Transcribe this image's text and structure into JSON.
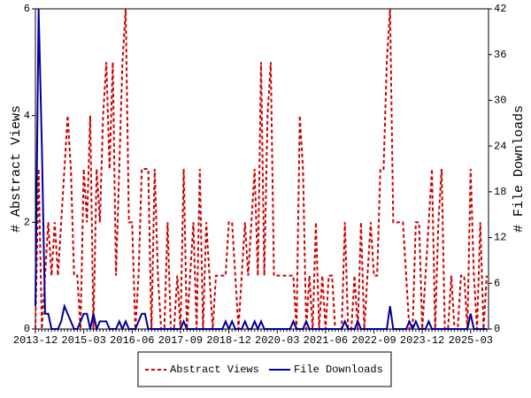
{
  "chart_data": {
    "type": "line",
    "y_label": "# Abstract Views",
    "y2_label": "# File Downloads",
    "categories": [
      "2013-12",
      null,
      null,
      null,
      null,
      null,
      null,
      null,
      null,
      null,
      null,
      null,
      null,
      null,
      null,
      "2015-03",
      null,
      null,
      null,
      null,
      null,
      null,
      null,
      null,
      null,
      null,
      null,
      null,
      null,
      null,
      "2016-06",
      null,
      null,
      null,
      null,
      null,
      null,
      null,
      null,
      null,
      null,
      null,
      null,
      null,
      null,
      "2017-09",
      null,
      null,
      null,
      null,
      null,
      null,
      null,
      null,
      null,
      null,
      null,
      null,
      null,
      null,
      "2018-12",
      null,
      null,
      null,
      null,
      null,
      null,
      null,
      null,
      null,
      null,
      null,
      null,
      null,
      null,
      "2020-03",
      null,
      null,
      null,
      null,
      null,
      null,
      null,
      null,
      null,
      null,
      null,
      null,
      null,
      null,
      "2021-06",
      null,
      null,
      null,
      null,
      null,
      null,
      null,
      null,
      null,
      null,
      null,
      null,
      null,
      null,
      "2022-09",
      null,
      null,
      null,
      null,
      null,
      null,
      null,
      null,
      null,
      null,
      null,
      null,
      null,
      null,
      "2023-12",
      null,
      null,
      null,
      null,
      null,
      null,
      null,
      null,
      null,
      null,
      null,
      null,
      null,
      null,
      "2025-03",
      null,
      null,
      null,
      null,
      null
    ],
    "series": [
      {
        "name": "Abstract Views",
        "color": "#cc0000",
        "dashed": true,
        "values": [
          0,
          3,
          0,
          1,
          2,
          1,
          2,
          1,
          2,
          3,
          4,
          3,
          1,
          1,
          0,
          3,
          2,
          4,
          0,
          3,
          2,
          4,
          5,
          3,
          5,
          1,
          3,
          5,
          6,
          2,
          2,
          0,
          1,
          3,
          3,
          3,
          0,
          3,
          1,
          0,
          0,
          2,
          0,
          0,
          1,
          0,
          3,
          0,
          1,
          2,
          0,
          3,
          0,
          2,
          1,
          0,
          1,
          1,
          1,
          1,
          2,
          2,
          1,
          0,
          1,
          2,
          1,
          2,
          3,
          1,
          5,
          1,
          4,
          5,
          1,
          1,
          1,
          1,
          1,
          1,
          1,
          0,
          4,
          3,
          0,
          1,
          0,
          2,
          0,
          1,
          0,
          1,
          1,
          0,
          0,
          0,
          2,
          0,
          0,
          1,
          0,
          2,
          0,
          1,
          2,
          1,
          1,
          3,
          3,
          5,
          6,
          2,
          2,
          2,
          2,
          1,
          0,
          0,
          2,
          2,
          0,
          1,
          2,
          3,
          0,
          2,
          3,
          0,
          0,
          1,
          0,
          0,
          1,
          1,
          0,
          3,
          1,
          0,
          2,
          0,
          1
        ]
      },
      {
        "name": "File Downloads",
        "color": "#000099",
        "axis": "y2",
        "values": [
          3,
          42,
          24,
          2,
          2,
          0,
          0,
          0,
          1,
          3,
          2,
          1,
          0,
          0,
          1,
          2,
          2,
          0,
          2,
          0,
          1,
          1,
          1,
          0,
          0,
          0,
          1,
          0,
          1,
          0,
          0,
          0,
          1,
          2,
          2,
          0,
          0,
          0,
          0,
          0,
          0,
          0,
          0,
          0,
          0,
          0,
          1,
          0,
          0,
          0,
          0,
          0,
          0,
          0,
          0,
          0,
          0,
          0,
          0,
          1,
          0,
          1,
          0,
          0,
          0,
          1,
          0,
          0,
          1,
          0,
          1,
          0,
          0,
          0,
          0,
          0,
          0,
          0,
          0,
          0,
          1,
          0,
          0,
          0,
          1,
          0,
          0,
          0,
          0,
          0,
          0,
          0,
          0,
          0,
          0,
          0,
          1,
          0,
          0,
          0,
          1,
          0,
          0,
          0,
          0,
          0,
          0,
          0,
          0,
          0,
          3,
          0,
          0,
          0,
          0,
          0,
          1,
          0,
          1,
          0,
          0,
          0,
          1,
          0,
          0,
          0,
          0,
          0,
          0,
          0,
          0,
          0,
          0,
          0,
          0,
          2,
          0,
          0,
          0,
          0,
          0
        ]
      }
    ],
    "ylim": [
      0,
      6
    ],
    "yticks": [
      0,
      2,
      4,
      6
    ],
    "y2lim": [
      0,
      42
    ],
    "y2ticks": [
      0,
      6,
      12,
      18,
      24,
      30,
      36,
      42
    ],
    "legend": "bottom"
  }
}
